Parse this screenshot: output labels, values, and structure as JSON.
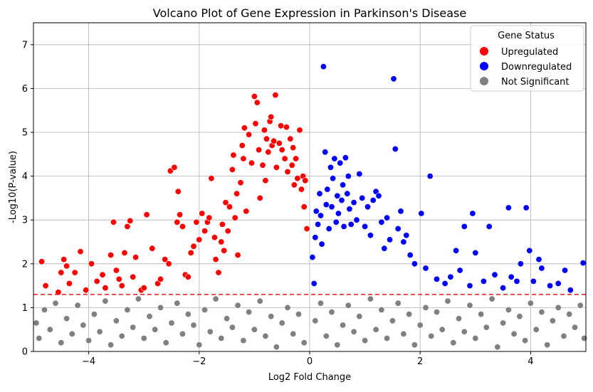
{
  "chart_data": {
    "type": "scatter",
    "title": "Volcano Plot of Gene Expression in Parkinson's Disease",
    "xlabel": "Log2 Fold Change",
    "ylabel": "-Log10(P-value)",
    "xlim": [
      -5,
      5
    ],
    "ylim": [
      0,
      7.5
    ],
    "x_ticks": [
      -4,
      -2,
      0,
      2,
      4
    ],
    "x_tick_labels": [
      "−4",
      "−2",
      "0",
      "2",
      "4"
    ],
    "y_ticks": [
      0,
      1,
      2,
      3,
      4,
      5,
      6,
      7
    ],
    "y_tick_labels": [
      "0",
      "1",
      "2",
      "3",
      "4",
      "5",
      "6",
      "7"
    ],
    "grid": true,
    "threshold_line": {
      "y": 1.3,
      "color": "#e41a1c",
      "style": "dashed"
    },
    "legend": {
      "title": "Gene Status",
      "placement": "top-right",
      "entries": [
        {
          "label": "Upregulated",
          "color": "#ff0000"
        },
        {
          "label": "Downregulated",
          "color": "#0000ff"
        },
        {
          "label": "Not Significant",
          "color": "#808080"
        }
      ]
    },
    "series": [
      {
        "name": "Upregulated",
        "color": "#ff0000",
        "points": [
          [
            -4.85,
            2.05
          ],
          [
            -4.78,
            1.5
          ],
          [
            -4.55,
            1.35
          ],
          [
            -4.5,
            1.8
          ],
          [
            -4.45,
            2.1
          ],
          [
            -4.4,
            1.95
          ],
          [
            -4.35,
            1.55
          ],
          [
            -4.25,
            1.8
          ],
          [
            -4.15,
            2.28
          ],
          [
            -4.05,
            1.4
          ],
          [
            -3.95,
            2.0
          ],
          [
            -3.85,
            1.6
          ],
          [
            -3.75,
            1.75
          ],
          [
            -3.7,
            1.45
          ],
          [
            -3.6,
            2.2
          ],
          [
            -3.55,
            2.95
          ],
          [
            -3.5,
            1.85
          ],
          [
            -3.45,
            1.65
          ],
          [
            -3.4,
            1.5
          ],
          [
            -3.35,
            2.25
          ],
          [
            -3.3,
            2.85
          ],
          [
            -3.25,
            2.98
          ],
          [
            -3.2,
            1.7
          ],
          [
            -3.15,
            2.15
          ],
          [
            -3.05,
            1.4
          ],
          [
            -3.0,
            1.45
          ],
          [
            -2.95,
            3.12
          ],
          [
            -2.85,
            2.35
          ],
          [
            -2.75,
            1.55
          ],
          [
            -2.7,
            1.65
          ],
          [
            -2.62,
            2.1
          ],
          [
            -2.55,
            2.0
          ],
          [
            -2.52,
            4.12
          ],
          [
            -2.45,
            4.2
          ],
          [
            -2.4,
            2.95
          ],
          [
            -2.38,
            3.65
          ],
          [
            -2.35,
            3.12
          ],
          [
            -2.3,
            2.85
          ],
          [
            -2.25,
            1.75
          ],
          [
            -2.2,
            1.7
          ],
          [
            -2.15,
            2.25
          ],
          [
            -2.1,
            2.4
          ],
          [
            -2.05,
            2.95
          ],
          [
            -2.0,
            2.55
          ],
          [
            -1.95,
            3.15
          ],
          [
            -1.9,
            2.75
          ],
          [
            -1.85,
            2.95
          ],
          [
            -1.82,
            3.05
          ],
          [
            -1.78,
            3.95
          ],
          [
            -1.72,
            2.6
          ],
          [
            -1.7,
            2.1
          ],
          [
            -1.65,
            1.8
          ],
          [
            -1.6,
            2.5
          ],
          [
            -1.58,
            2.9
          ],
          [
            -1.55,
            2.3
          ],
          [
            -1.52,
            3.4
          ],
          [
            -1.48,
            2.75
          ],
          [
            -1.45,
            3.3
          ],
          [
            -1.4,
            4.15
          ],
          [
            -1.38,
            4.48
          ],
          [
            -1.35,
            3.05
          ],
          [
            -1.32,
            3.6
          ],
          [
            -1.3,
            2.2
          ],
          [
            -1.25,
            3.85
          ],
          [
            -1.22,
            4.7
          ],
          [
            -1.2,
            4.4
          ],
          [
            -1.18,
            5.1
          ],
          [
            -1.15,
            3.2
          ],
          [
            -1.1,
            4.95
          ],
          [
            -1.05,
            4.3
          ],
          [
            -1.0,
            5.82
          ],
          [
            -0.98,
            5.2
          ],
          [
            -0.95,
            5.68
          ],
          [
            -0.92,
            4.6
          ],
          [
            -0.9,
            3.5
          ],
          [
            -0.85,
            4.25
          ],
          [
            -0.82,
            5.05
          ],
          [
            -0.8,
            3.9
          ],
          [
            -0.78,
            4.85
          ],
          [
            -0.75,
            4.55
          ],
          [
            -0.72,
            5.25
          ],
          [
            -0.7,
            5.35
          ],
          [
            -0.68,
            4.7
          ],
          [
            -0.65,
            4.8
          ],
          [
            -0.62,
            5.85
          ],
          [
            -0.6,
            4.2
          ],
          [
            -0.55,
            4.75
          ],
          [
            -0.52,
            5.15
          ],
          [
            -0.5,
            4.6
          ],
          [
            -0.45,
            4.4
          ],
          [
            -0.42,
            5.12
          ],
          [
            -0.4,
            4.1
          ],
          [
            -0.35,
            4.85
          ],
          [
            -0.32,
            4.25
          ],
          [
            -0.3,
            4.65
          ],
          [
            -0.28,
            3.8
          ],
          [
            -0.25,
            4.4
          ],
          [
            -0.22,
            3.95
          ],
          [
            -0.18,
            5.05
          ],
          [
            -0.15,
            3.7
          ],
          [
            -0.12,
            4.0
          ],
          [
            -0.1,
            3.3
          ],
          [
            -0.08,
            3.9
          ],
          [
            -0.05,
            2.8
          ]
        ]
      },
      {
        "name": "Downregulated",
        "color": "#0000ff",
        "points": [
          [
            0.05,
            2.15
          ],
          [
            0.08,
            1.55
          ],
          [
            0.1,
            2.6
          ],
          [
            0.12,
            3.2
          ],
          [
            0.15,
            2.9
          ],
          [
            0.18,
            3.6
          ],
          [
            0.2,
            3.1
          ],
          [
            0.22,
            2.45
          ],
          [
            0.25,
            6.5
          ],
          [
            0.28,
            4.55
          ],
          [
            0.3,
            3.35
          ],
          [
            0.32,
            3.7
          ],
          [
            0.35,
            2.8
          ],
          [
            0.38,
            4.2
          ],
          [
            0.4,
            3.3
          ],
          [
            0.42,
            3.95
          ],
          [
            0.45,
            4.4
          ],
          [
            0.48,
            2.95
          ],
          [
            0.5,
            3.55
          ],
          [
            0.52,
            3.15
          ],
          [
            0.55,
            4.3
          ],
          [
            0.58,
            3.45
          ],
          [
            0.6,
            3.8
          ],
          [
            0.62,
            2.85
          ],
          [
            0.65,
            4.42
          ],
          [
            0.68,
            3.6
          ],
          [
            0.7,
            4.0
          ],
          [
            0.72,
            3.25
          ],
          [
            0.75,
            2.9
          ],
          [
            0.8,
            3.4
          ],
          [
            0.85,
            3.0
          ],
          [
            0.9,
            4.05
          ],
          [
            0.95,
            3.5
          ],
          [
            1.0,
            2.85
          ],
          [
            1.05,
            3.3
          ],
          [
            1.1,
            2.65
          ],
          [
            1.15,
            3.45
          ],
          [
            1.2,
            3.65
          ],
          [
            1.25,
            3.55
          ],
          [
            1.3,
            2.95
          ],
          [
            1.35,
            2.35
          ],
          [
            1.4,
            3.05
          ],
          [
            1.45,
            2.55
          ],
          [
            1.52,
            6.22
          ],
          [
            1.55,
            4.62
          ],
          [
            1.6,
            2.8
          ],
          [
            1.65,
            3.2
          ],
          [
            1.7,
            2.5
          ],
          [
            1.75,
            2.65
          ],
          [
            1.82,
            2.2
          ],
          [
            1.9,
            2.0
          ],
          [
            2.02,
            3.15
          ],
          [
            2.1,
            1.9
          ],
          [
            2.18,
            4.0
          ],
          [
            2.3,
            1.65
          ],
          [
            2.45,
            1.55
          ],
          [
            2.55,
            1.7
          ],
          [
            2.65,
            2.3
          ],
          [
            2.72,
            1.85
          ],
          [
            2.8,
            2.85
          ],
          [
            2.9,
            1.5
          ],
          [
            2.95,
            3.15
          ],
          [
            3.0,
            2.25
          ],
          [
            3.15,
            1.6
          ],
          [
            3.25,
            2.85
          ],
          [
            3.35,
            1.75
          ],
          [
            3.5,
            1.45
          ],
          [
            3.6,
            3.28
          ],
          [
            3.65,
            1.7
          ],
          [
            3.75,
            1.6
          ],
          [
            3.82,
            2.0
          ],
          [
            3.92,
            3.28
          ],
          [
            3.98,
            2.3
          ],
          [
            4.05,
            1.6
          ],
          [
            4.15,
            2.1
          ],
          [
            4.2,
            1.9
          ],
          [
            4.35,
            1.5
          ],
          [
            4.5,
            1.55
          ],
          [
            4.62,
            1.85
          ],
          [
            4.72,
            1.4
          ],
          [
            4.95,
            2.02
          ]
        ]
      },
      {
        "name": "Not Significant",
        "color": "#808080",
        "points": [
          [
            -4.95,
            0.65
          ],
          [
            -4.9,
            0.3
          ],
          [
            -4.8,
            0.95
          ],
          [
            -4.7,
            0.5
          ],
          [
            -4.6,
            1.1
          ],
          [
            -4.5,
            0.2
          ],
          [
            -4.4,
            0.75
          ],
          [
            -4.3,
            0.4
          ],
          [
            -4.2,
            1.05
          ],
          [
            -4.1,
            0.6
          ],
          [
            -4.0,
            0.25
          ],
          [
            -3.9,
            0.85
          ],
          [
            -3.8,
            0.45
          ],
          [
            -3.7,
            1.15
          ],
          [
            -3.6,
            0.15
          ],
          [
            -3.5,
            0.7
          ],
          [
            -3.4,
            0.35
          ],
          [
            -3.3,
            0.95
          ],
          [
            -3.2,
            0.55
          ],
          [
            -3.1,
            1.2
          ],
          [
            -3.0,
            0.3
          ],
          [
            -2.9,
            0.8
          ],
          [
            -2.8,
            0.5
          ],
          [
            -2.7,
            1.0
          ],
          [
            -2.6,
            0.2
          ],
          [
            -2.5,
            0.65
          ],
          [
            -2.4,
            1.1
          ],
          [
            -2.3,
            0.4
          ],
          [
            -2.2,
            0.85
          ],
          [
            -2.1,
            0.6
          ],
          [
            -2.0,
            0.15
          ],
          [
            -1.9,
            0.95
          ],
          [
            -1.8,
            0.45
          ],
          [
            -1.7,
            1.2
          ],
          [
            -1.6,
            0.3
          ],
          [
            -1.5,
            0.75
          ],
          [
            -1.4,
            0.55
          ],
          [
            -1.3,
            1.05
          ],
          [
            -1.2,
            0.25
          ],
          [
            -1.1,
            0.9
          ],
          [
            -1.0,
            0.5
          ],
          [
            -0.9,
            1.15
          ],
          [
            -0.8,
            0.35
          ],
          [
            -0.7,
            0.8
          ],
          [
            -0.6,
            0.1
          ],
          [
            -0.5,
            0.65
          ],
          [
            -0.4,
            1.0
          ],
          [
            -0.3,
            0.4
          ],
          [
            -0.2,
            0.85
          ],
          [
            -0.1,
            0.2
          ],
          [
            0.1,
            0.7
          ],
          [
            0.2,
            1.1
          ],
          [
            0.3,
            0.35
          ],
          [
            0.4,
            0.9
          ],
          [
            0.5,
            0.15
          ],
          [
            0.6,
            0.6
          ],
          [
            0.7,
            1.05
          ],
          [
            0.8,
            0.45
          ],
          [
            0.9,
            0.8
          ],
          [
            1.0,
            0.25
          ],
          [
            1.1,
            1.2
          ],
          [
            1.2,
            0.5
          ],
          [
            1.3,
            0.95
          ],
          [
            1.4,
            0.3
          ],
          [
            1.5,
            0.7
          ],
          [
            1.6,
            1.1
          ],
          [
            1.7,
            0.4
          ],
          [
            1.8,
            0.85
          ],
          [
            1.9,
            0.15
          ],
          [
            2.0,
            0.6
          ],
          [
            2.1,
            1.0
          ],
          [
            2.2,
            0.35
          ],
          [
            2.3,
            0.9
          ],
          [
            2.4,
            0.5
          ],
          [
            2.5,
            1.15
          ],
          [
            2.6,
            0.2
          ],
          [
            2.7,
            0.75
          ],
          [
            2.8,
            0.45
          ],
          [
            2.9,
            1.05
          ],
          [
            3.0,
            0.3
          ],
          [
            3.1,
            0.85
          ],
          [
            3.2,
            0.55
          ],
          [
            3.3,
            1.2
          ],
          [
            3.4,
            0.1
          ],
          [
            3.5,
            0.65
          ],
          [
            3.6,
            0.95
          ],
          [
            3.7,
            0.4
          ],
          [
            3.8,
            0.8
          ],
          [
            3.9,
            0.25
          ],
          [
            4.0,
            1.1
          ],
          [
            4.1,
            0.5
          ],
          [
            4.2,
            0.9
          ],
          [
            4.3,
            0.15
          ],
          [
            4.4,
            0.7
          ],
          [
            4.5,
            1.0
          ],
          [
            4.6,
            0.35
          ],
          [
            4.7,
            0.85
          ],
          [
            4.8,
            0.55
          ],
          [
            4.9,
            1.05
          ],
          [
            4.97,
            0.3
          ]
        ]
      }
    ]
  }
}
